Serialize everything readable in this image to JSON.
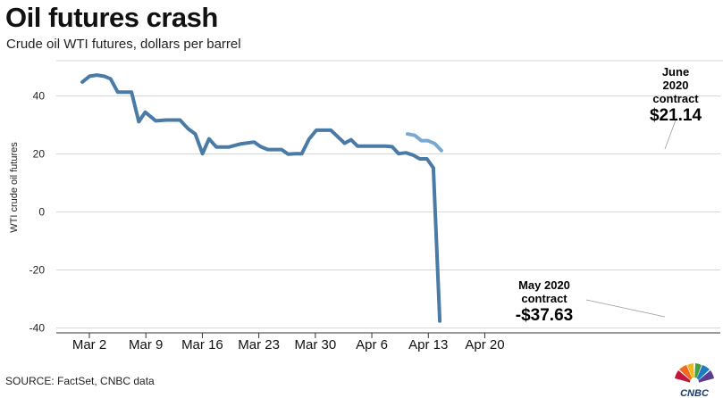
{
  "header": {
    "title": "Oil futures crash",
    "subtitle": "Crude oil WTI futures, dollars per barrel"
  },
  "footer": {
    "source": "SOURCE: FactSet, CNBC data",
    "logo_text": "CNBC"
  },
  "colors": {
    "may_series": "#4a7aa6",
    "june_series": "#79a9d1",
    "gridline": "#d7d7d7",
    "axis": "#333333"
  },
  "chart_data": {
    "type": "line",
    "ylabel": "WTI crude oil futures",
    "xlabel": "",
    "ylim": [
      -40,
      50
    ],
    "y_ticks": [
      40,
      20,
      0,
      -20,
      -40
    ],
    "x_ticks": [
      {
        "label": "Mar 2",
        "day": 0
      },
      {
        "label": "Mar 9",
        "day": 7
      },
      {
        "label": "Mar 16",
        "day": 14
      },
      {
        "label": "Mar 23",
        "day": 21
      },
      {
        "label": "Mar 30",
        "day": 28
      },
      {
        "label": "Apr 6",
        "day": 35
      },
      {
        "label": "Apr 13",
        "day": 42
      },
      {
        "label": "Apr 20",
        "day": 49
      }
    ],
    "grid": "horizontal",
    "series": [
      {
        "key": "may",
        "points": [
          [
            -0.1,
            44.8
          ],
          [
            0.8,
            46.8
          ],
          [
            1.7,
            47.2
          ],
          [
            2.6,
            46.8
          ],
          [
            3.4,
            45.9
          ],
          [
            4.3,
            41.3
          ],
          [
            5.2,
            41.3
          ],
          [
            6.0,
            41.3
          ],
          [
            6.9,
            31.1
          ],
          [
            7.7,
            34.4
          ],
          [
            9.0,
            31.4
          ],
          [
            10.3,
            31.7
          ],
          [
            12.0,
            31.7
          ],
          [
            13.0,
            28.7
          ],
          [
            13.9,
            26.9
          ],
          [
            14.8,
            20.1
          ],
          [
            15.6,
            25.2
          ],
          [
            16.5,
            22.4
          ],
          [
            18.1,
            22.4
          ],
          [
            19.6,
            23.5
          ],
          [
            21.2,
            24.1
          ],
          [
            22.0,
            22.5
          ],
          [
            22.9,
            21.5
          ],
          [
            24.6,
            21.5
          ],
          [
            25.4,
            19.9
          ],
          [
            26.3,
            20.1
          ],
          [
            27.1,
            20.1
          ],
          [
            28.0,
            25.1
          ],
          [
            28.9,
            28.2
          ],
          [
            30.7,
            28.2
          ],
          [
            31.5,
            26.1
          ],
          [
            32.4,
            23.7
          ],
          [
            33.2,
            24.9
          ],
          [
            34.0,
            22.7
          ],
          [
            35.8,
            22.7
          ],
          [
            37.5,
            22.7
          ],
          [
            38.3,
            22.5
          ],
          [
            39.1,
            20.1
          ],
          [
            40.0,
            20.4
          ],
          [
            40.9,
            19.6
          ],
          [
            41.7,
            18.3
          ],
          [
            42.6,
            18.3
          ],
          [
            43.4,
            15.2
          ],
          [
            44.2,
            -37.63
          ]
        ]
      },
      {
        "key": "june",
        "points": [
          [
            40.2,
            26.9
          ],
          [
            41.1,
            26.4
          ],
          [
            41.9,
            24.6
          ],
          [
            42.7,
            24.6
          ],
          [
            43.6,
            23.5
          ],
          [
            44.4,
            21.14
          ]
        ]
      }
    ],
    "annotations": {
      "june": {
        "line1": "June",
        "line2": "2020",
        "line3": "contract",
        "value": "$21.14"
      },
      "may": {
        "line1": "May 2020",
        "line2": "contract",
        "value": "-$37.63"
      }
    }
  }
}
